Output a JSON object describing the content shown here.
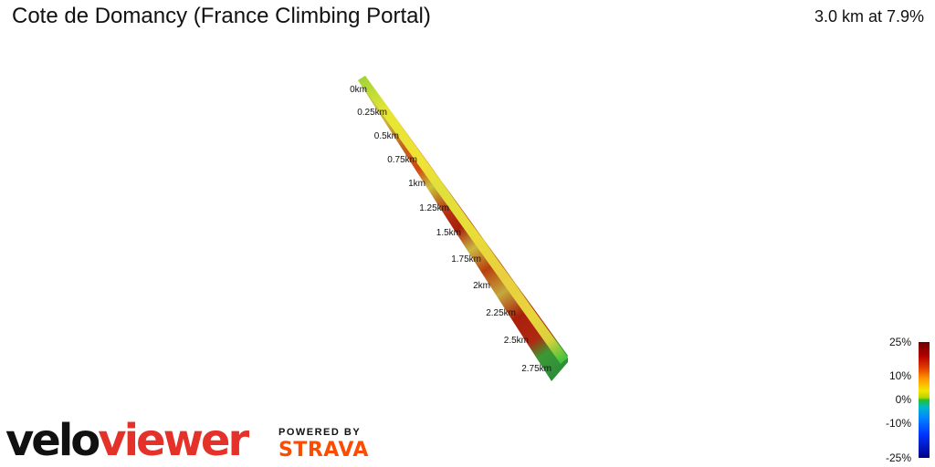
{
  "header": {
    "title": "Cote de Domancy (France Climbing Portal)",
    "stats": "3.0 km at 7.9%"
  },
  "profile": {
    "km_markers": [
      "0km",
      "0.25km",
      "0.5km",
      "0.75km",
      "1km",
      "1.25km",
      "1.5km",
      "1.75km",
      "2km",
      "2.25km",
      "2.5km",
      "2.75km"
    ]
  },
  "legend": {
    "ticks": [
      "25%",
      "10%",
      "0%",
      "-10%",
      "-25%"
    ]
  },
  "branding": {
    "logo_text": "veloviewer",
    "powered_by": "POWERED BY",
    "strava": "STRAVA"
  }
}
